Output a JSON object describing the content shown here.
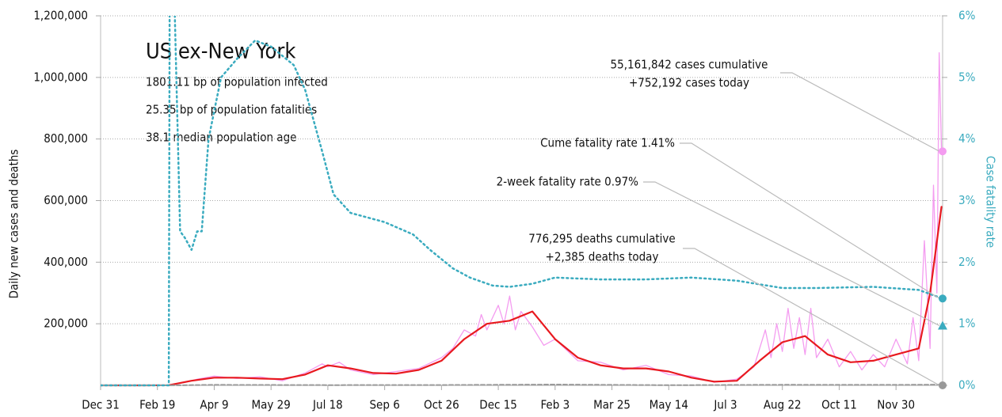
{
  "chart_data": {
    "type": "line",
    "title": "US ex-New York",
    "stats": [
      "1801.11 bp of population infected",
      "25.35 bp of population fatalities",
      "38.1 median population age"
    ],
    "ylabel": "Daily new cases and deaths",
    "y2label": "Case fatality rate",
    "xlim": [
      0,
      741
    ],
    "xticks": [
      {
        "value": 0,
        "label": "Dec 31"
      },
      {
        "value": 50,
        "label": "Feb 19"
      },
      {
        "value": 100,
        "label": "Apr 9"
      },
      {
        "value": 150,
        "label": "May 29"
      },
      {
        "value": 200,
        "label": "Jul 18"
      },
      {
        "value": 250,
        "label": "Sep 6"
      },
      {
        "value": 300,
        "label": "Oct 26"
      },
      {
        "value": 350,
        "label": "Dec 15"
      },
      {
        "value": 400,
        "label": "Feb 3"
      },
      {
        "value": 450,
        "label": "Mar 25"
      },
      {
        "value": 500,
        "label": "May 14"
      },
      {
        "value": 550,
        "label": "Jul 3"
      },
      {
        "value": 600,
        "label": "Aug 22"
      },
      {
        "value": 650,
        "label": "Oct 11"
      },
      {
        "value": 700,
        "label": "Nov 30"
      }
    ],
    "ylim": [
      0,
      1200000
    ],
    "yticks": [
      {
        "value": 200000,
        "label": "200,000"
      },
      {
        "value": 400000,
        "label": "400,000"
      },
      {
        "value": 600000,
        "label": "600,000"
      },
      {
        "value": 800000,
        "label": "800,000"
      },
      {
        "value": 1000000,
        "label": "1,000,000"
      },
      {
        "value": 1200000,
        "label": "1,200,000"
      }
    ],
    "y2lim": [
      0,
      6
    ],
    "y2ticks": [
      {
        "value": 0,
        "label": "0%"
      },
      {
        "value": 1,
        "label": "1%"
      },
      {
        "value": 2,
        "label": "2%"
      },
      {
        "value": 3,
        "label": "3%"
      },
      {
        "value": 4,
        "label": "4%"
      },
      {
        "value": 5,
        "label": "5%"
      },
      {
        "value": 6,
        "label": "6%"
      }
    ],
    "grid": true,
    "series": [
      {
        "color": "#f49cf0",
        "width": 1.3,
        "dash": "none",
        "x": [
          0,
          40,
          60,
          75,
          85,
          100,
          120,
          140,
          160,
          180,
          195,
          200,
          210,
          220,
          240,
          260,
          280,
          300,
          310,
          320,
          330,
          335,
          340,
          350,
          355,
          360,
          365,
          370,
          380,
          390,
          400,
          420,
          440,
          460,
          480,
          500,
          520,
          540,
          560,
          575,
          585,
          590,
          595,
          600,
          605,
          610,
          615,
          620,
          625,
          630,
          640,
          650,
          660,
          670,
          680,
          690,
          700,
          710,
          715,
          720,
          725,
          730,
          733,
          736,
          738,
          740
        ],
        "values": [
          0,
          0,
          500,
          10000,
          20000,
          30000,
          22000,
          28000,
          15000,
          40000,
          70000,
          60000,
          75000,
          50000,
          35000,
          45000,
          55000,
          90000,
          120000,
          180000,
          160000,
          230000,
          180000,
          260000,
          200000,
          290000,
          180000,
          240000,
          190000,
          130000,
          150000,
          80000,
          75000,
          50000,
          65000,
          35000,
          30000,
          10000,
          20000,
          60000,
          180000,
          90000,
          200000,
          110000,
          250000,
          120000,
          220000,
          100000,
          250000,
          90000,
          150000,
          60000,
          110000,
          50000,
          100000,
          60000,
          150000,
          70000,
          220000,
          80000,
          470000,
          120000,
          650000,
          300000,
          1080000,
          760000
        ]
      },
      {
        "color": "#e8191f",
        "width": 2.2,
        "dash": "none",
        "x": [
          0,
          20,
          40,
          60,
          80,
          100,
          120,
          140,
          160,
          180,
          200,
          220,
          240,
          260,
          280,
          300,
          320,
          340,
          360,
          380,
          400,
          420,
          440,
          460,
          480,
          500,
          520,
          540,
          560,
          580,
          600,
          620,
          640,
          660,
          680,
          700,
          720,
          730,
          740
        ],
        "values": [
          0,
          0,
          0,
          500,
          15000,
          25000,
          25000,
          22000,
          20000,
          35000,
          65000,
          55000,
          40000,
          38000,
          50000,
          80000,
          150000,
          200000,
          210000,
          240000,
          150000,
          90000,
          65000,
          55000,
          55000,
          45000,
          25000,
          12000,
          15000,
          80000,
          140000,
          160000,
          100000,
          75000,
          80000,
          100000,
          120000,
          300000,
          580000
        ]
      },
      {
        "color": "#999999",
        "width": 2,
        "dash": "5 3",
        "x": [
          0,
          60,
          100,
          200,
          300,
          400,
          500,
          600,
          700,
          741
        ],
        "values": [
          0,
          0,
          1500,
          800,
          900,
          2500,
          600,
          1800,
          1500,
          2385
        ]
      },
      {
        "color": "#3aabbf",
        "width": 2.5,
        "dash": "2 4",
        "axis": "y2",
        "x": [
          0,
          60,
          61,
          64,
          70,
          74,
          80,
          85,
          89,
          95,
          106,
          120,
          136,
          150,
          170,
          180,
          195,
          205,
          220,
          250,
          275,
          290,
          310,
          325,
          345,
          360,
          380,
          400,
          440,
          480,
          520,
          560,
          600,
          630,
          680,
          720,
          741
        ],
        "values": [
          0,
          0,
          8,
          7,
          2.5,
          2.4,
          2.2,
          2.5,
          2.5,
          4,
          5,
          5.3,
          5.6,
          5.5,
          5.2,
          4.8,
          3.8,
          3.1,
          2.8,
          2.65,
          2.45,
          2.2,
          1.9,
          1.75,
          1.62,
          1.6,
          1.65,
          1.75,
          1.72,
          1.72,
          1.75,
          1.7,
          1.58,
          1.58,
          1.6,
          1.55,
          1.41
        ]
      }
    ],
    "markers": [
      {
        "value": 760000,
        "color": "#f49cf0",
        "shape": "circle"
      },
      {
        "value": 1.41,
        "axis": "y2",
        "color": "#3aabbf",
        "shape": "circle"
      },
      {
        "value": 0.97,
        "axis": "y2",
        "color": "#3aabbf",
        "shape": "triangle"
      },
      {
        "value": 0,
        "color": "#999999",
        "shape": "circle"
      }
    ],
    "annotations": [
      {
        "lines": [
          "55,161,842 cases cumulative",
          "+752,192 cases today"
        ]
      },
      {
        "lines": [
          "Cume fatality rate 1.41%"
        ]
      },
      {
        "lines": [
          "2-week fatality rate 0.97%"
        ]
      },
      {
        "lines": [
          "776,295 deaths cumulative",
          "+2,385 deaths today"
        ]
      }
    ]
  }
}
